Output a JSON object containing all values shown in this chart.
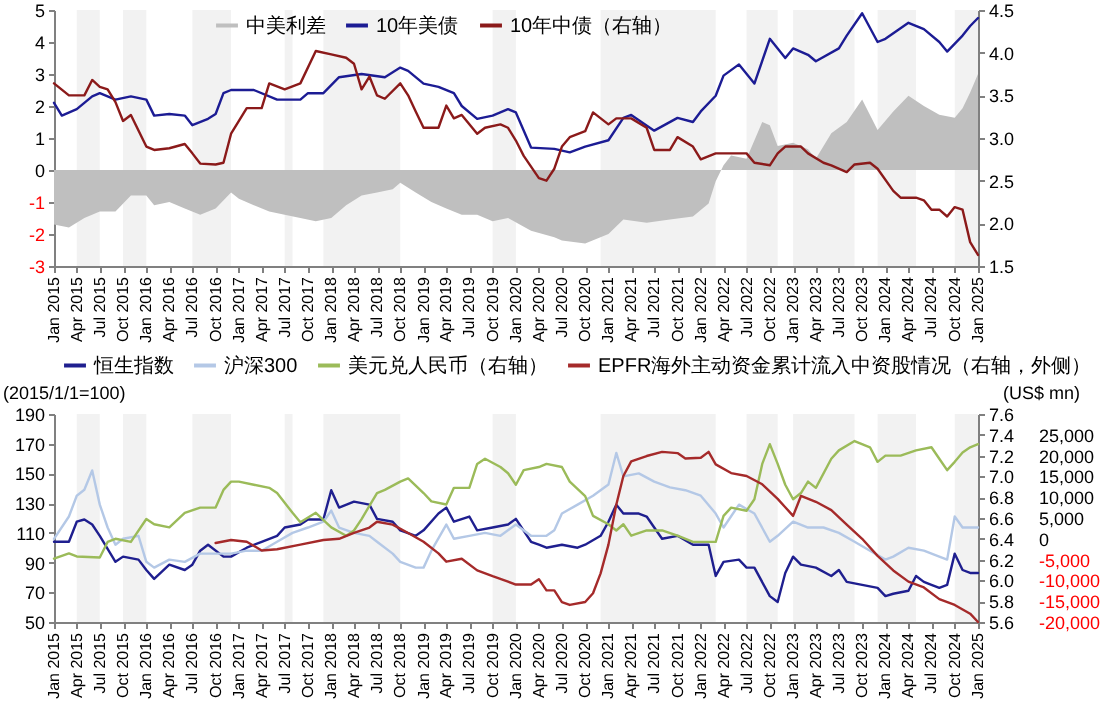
{
  "chart_data": [
    {
      "type": "line",
      "legend": "top",
      "xlim": [
        "2015-01",
        "2025-01"
      ],
      "xticks": [
        {
          "value": "2015-01",
          "label": "Jan 2015"
        },
        {
          "value": "2015-04",
          "label": "Apr 2015"
        },
        {
          "value": "2015-07",
          "label": "Jul 2015"
        },
        {
          "value": "2015-10",
          "label": "Oct 2015"
        },
        {
          "value": "2016-01",
          "label": "Jan 2016"
        },
        {
          "value": "2016-04",
          "label": "Apr 2016"
        },
        {
          "value": "2016-07",
          "label": "Jul 2016"
        },
        {
          "value": "2016-10",
          "label": "Oct 2016"
        },
        {
          "value": "2017-01",
          "label": "Jan 2017"
        },
        {
          "value": "2017-04",
          "label": "Apr 2017"
        },
        {
          "value": "2017-07",
          "label": "Jul 2017"
        },
        {
          "value": "2017-10",
          "label": "Oct 2017"
        },
        {
          "value": "2018-01",
          "label": "Jan 2018"
        },
        {
          "value": "2018-04",
          "label": "Apr 2018"
        },
        {
          "value": "2018-07",
          "label": "Jul 2018"
        },
        {
          "value": "2018-10",
          "label": "Oct 2018"
        },
        {
          "value": "2019-01",
          "label": "Jan 2019"
        },
        {
          "value": "2019-04",
          "label": "Apr 2019"
        },
        {
          "value": "2019-07",
          "label": "Jul 2019"
        },
        {
          "value": "2019-10",
          "label": "Oct 2019"
        },
        {
          "value": "2020-01",
          "label": "Jan 2020"
        },
        {
          "value": "2020-04",
          "label": "Apr 2020"
        },
        {
          "value": "2020-07",
          "label": "Jul 2020"
        },
        {
          "value": "2020-10",
          "label": "Oct 2020"
        },
        {
          "value": "2021-01",
          "label": "Jan 2021"
        },
        {
          "value": "2021-04",
          "label": "Apr 2021"
        },
        {
          "value": "2021-07",
          "label": "Jul 2021"
        },
        {
          "value": "2021-10",
          "label": "Oct 2021"
        },
        {
          "value": "2022-01",
          "label": "Jan 2022"
        },
        {
          "value": "2022-04",
          "label": "Apr 2022"
        },
        {
          "value": "2022-07",
          "label": "Jul 2022"
        },
        {
          "value": "2022-10",
          "label": "Oct 2022"
        },
        {
          "value": "2023-01",
          "label": "Jan 2023"
        },
        {
          "value": "2023-04",
          "label": "Apr 2023"
        },
        {
          "value": "2023-07",
          "label": "Jul 2023"
        },
        {
          "value": "2023-10",
          "label": "Oct 2023"
        },
        {
          "value": "2024-01",
          "label": "Jan 2024"
        },
        {
          "value": "2024-04",
          "label": "Apr 2024"
        },
        {
          "value": "2024-07",
          "label": "Jul 2024"
        },
        {
          "value": "2024-10",
          "label": "Oct 2024"
        },
        {
          "value": "2025-01",
          "label": "Jan 2025"
        }
      ],
      "ylim": [
        -3,
        5
      ],
      "yticks": [
        -3,
        -2,
        -1,
        0,
        1,
        2,
        3,
        4,
        5
      ],
      "y2lim": [
        1.5,
        4.5
      ],
      "y2ticks": [
        1.5,
        {
          "value": 2,
          "label": "2.0"
        },
        2.5,
        {
          "value": 3,
          "label": "3.0"
        },
        3.5,
        {
          "value": 4,
          "label": "4.0"
        },
        4.5
      ],
      "bands": [
        {
          "axis": "x",
          "from": "2015-04",
          "to": "2015-07",
          "color": "#f2f2f2"
        },
        {
          "axis": "x",
          "from": "2015-10",
          "to": "2016-01",
          "color": "#f2f2f2"
        },
        {
          "axis": "x",
          "from": "2016-07",
          "to": "2016-12",
          "color": "#f2f2f2"
        },
        {
          "axis": "x",
          "from": "2017-07",
          "to": "2017-08",
          "color": "#f2f2f2"
        },
        {
          "axis": "x",
          "from": "2017-12",
          "to": "2018-10",
          "color": "#f2f2f2"
        },
        {
          "axis": "x",
          "from": "2019-10",
          "to": "2020-01",
          "color": "#f2f2f2"
        },
        {
          "axis": "x",
          "from": "2020-12",
          "to": "2022-03",
          "color": "#f2f2f2"
        },
        {
          "axis": "x",
          "from": "2022-07",
          "to": "2022-11",
          "color": "#f2f2f2"
        },
        {
          "axis": "x",
          "from": "2023-01",
          "to": "2023-09",
          "color": "#f2f2f2"
        },
        {
          "axis": "x",
          "from": "2023-12",
          "to": "2024-05",
          "color": "#f2f2f2"
        },
        {
          "axis": "x",
          "from": "2024-10",
          "to": "2025-01",
          "color": "#f2f2f2"
        }
      ],
      "series": [
        {
          "name": "中美利差",
          "type": "area",
          "color": "#bfbfbf",
          "x": [
            "2015-01",
            "2015-03",
            "2015-05",
            "2015-07",
            "2015-09",
            "2015-11",
            "2016-01",
            "2016-02",
            "2016-04",
            "2016-06",
            "2016-08",
            "2016-10",
            "2016-12",
            "2017-01",
            "2017-03",
            "2017-05",
            "2017-07",
            "2017-09",
            "2017-11",
            "2018-01",
            "2018-03",
            "2018-05",
            "2018-07",
            "2018-09",
            "2018-10",
            "2018-12",
            "2019-02",
            "2019-04",
            "2019-06",
            "2019-08",
            "2019-10",
            "2019-12",
            "2020-03",
            "2020-06",
            "2020-07",
            "2020-10",
            "2021-01",
            "2021-03",
            "2021-06",
            "2021-09",
            "2021-12",
            "2022-02",
            "2022-03",
            "2022-04",
            "2022-05",
            "2022-07",
            "2022-09",
            "2022-10",
            "2022-11",
            "2023-01",
            "2023-03",
            "2023-04",
            "2023-06",
            "2023-08",
            "2023-10",
            "2023-12",
            "2024-02",
            "2024-04",
            "2024-06",
            "2024-08",
            "2024-10",
            "2024-11",
            "2024-12",
            "2025-01"
          ],
          "values": [
            -1.7,
            -1.8,
            -1.5,
            -1.3,
            -1.3,
            -0.8,
            -0.8,
            -1.1,
            -1.0,
            -1.2,
            -1.4,
            -1.2,
            -0.7,
            -0.9,
            -1.1,
            -1.3,
            -1.4,
            -1.5,
            -1.6,
            -1.5,
            -1.1,
            -0.8,
            -0.7,
            -0.6,
            -0.4,
            -0.7,
            -1.0,
            -1.2,
            -1.4,
            -1.4,
            -1.6,
            -1.5,
            -1.9,
            -2.1,
            -2.2,
            -2.3,
            -2.0,
            -1.55,
            -1.65,
            -1.55,
            -1.45,
            -1.05,
            -0.35,
            0.15,
            0.45,
            0.35,
            1.5,
            1.4,
            0.75,
            0.85,
            0.65,
            0.35,
            1.15,
            1.5,
            2.2,
            1.25,
            1.83,
            2.32,
            2.0,
            1.73,
            1.63,
            1.93,
            2.42,
            3.0
          ]
        },
        {
          "name": "10年美债",
          "color": "#1c1c94",
          "x": [
            "2015-01",
            "2015-02",
            "2015-04",
            "2015-06",
            "2015-07",
            "2015-09",
            "2015-11",
            "2016-01",
            "2016-02",
            "2016-04",
            "2016-06",
            "2016-07",
            "2016-09",
            "2016-10",
            "2016-11",
            "2016-12",
            "2017-03",
            "2017-06",
            "2017-09",
            "2017-10",
            "2017-12",
            "2018-02",
            "2018-05",
            "2018-08",
            "2018-10",
            "2018-11",
            "2019-01",
            "2019-03",
            "2019-05",
            "2019-06",
            "2019-08",
            "2019-10",
            "2019-12",
            "2020-01",
            "2020-03",
            "2020-06",
            "2020-08",
            "2020-10",
            "2021-01",
            "2021-03",
            "2021-04",
            "2021-07",
            "2021-10",
            "2021-12",
            "2022-01",
            "2022-03",
            "2022-04",
            "2022-06",
            "2022-08",
            "2022-10",
            "2022-11",
            "2022-12",
            "2023-01",
            "2023-03",
            "2023-04",
            "2023-07",
            "2023-08",
            "2023-10",
            "2023-12",
            "2024-01",
            "2024-04",
            "2024-06",
            "2024-08",
            "2024-09",
            "2024-11",
            "2024-12",
            "2025-01"
          ],
          "values": [
            2.1,
            1.7,
            1.9,
            2.3,
            2.4,
            2.2,
            2.3,
            2.2,
            1.7,
            1.75,
            1.7,
            1.4,
            1.6,
            1.75,
            2.4,
            2.5,
            2.5,
            2.2,
            2.2,
            2.4,
            2.4,
            2.9,
            3.0,
            2.9,
            3.2,
            3.1,
            2.7,
            2.6,
            2.4,
            2.0,
            1.6,
            1.7,
            1.9,
            1.8,
            0.7,
            0.66,
            0.55,
            0.73,
            0.93,
            1.63,
            1.72,
            1.23,
            1.63,
            1.5,
            1.83,
            2.32,
            2.95,
            3.3,
            2.7,
            4.1,
            3.8,
            3.5,
            3.8,
            3.6,
            3.4,
            3.8,
            4.2,
            4.9,
            4.0,
            4.1,
            4.6,
            4.4,
            4.0,
            3.7,
            4.2,
            4.5,
            4.75
          ]
        },
        {
          "name": "10年中债（右轴）",
          "color": "#8b1a1a",
          "axis": "y2",
          "x": [
            "2015-01",
            "2015-03",
            "2015-05",
            "2015-06",
            "2015-07",
            "2015-08",
            "2015-09",
            "2015-10",
            "2015-11",
            "2016-01",
            "2016-02",
            "2016-04",
            "2016-06",
            "2016-07",
            "2016-08",
            "2016-10",
            "2016-11",
            "2016-12",
            "2017-01",
            "2017-02",
            "2017-04",
            "2017-05",
            "2017-07",
            "2017-09",
            "2017-11",
            "2018-01",
            "2018-03",
            "2018-04",
            "2018-05",
            "2018-06",
            "2018-07",
            "2018-08",
            "2018-10",
            "2018-11",
            "2018-12",
            "2019-01",
            "2019-03",
            "2019-04",
            "2019-05",
            "2019-06",
            "2019-08",
            "2019-09",
            "2019-11",
            "2019-12",
            "2020-01",
            "2020-02",
            "2020-04",
            "2020-05",
            "2020-06",
            "2020-07",
            "2020-08",
            "2020-10",
            "2020-11",
            "2021-01",
            "2021-02",
            "2021-04",
            "2021-06",
            "2021-07",
            "2021-09",
            "2021-10",
            "2021-12",
            "2022-01",
            "2022-03",
            "2022-05",
            "2022-07",
            "2022-08",
            "2022-10",
            "2022-11",
            "2022-12",
            "2023-02",
            "2023-03",
            "2023-05",
            "2023-06",
            "2023-08",
            "2023-09",
            "2023-11",
            "2023-12",
            "2024-02",
            "2024-03",
            "2024-05",
            "2024-06",
            "2024-07",
            "2024-08",
            "2024-09",
            "2024-10",
            "2024-11",
            "2024-12",
            "2025-01"
          ],
          "values": [
            3.64,
            3.5,
            3.5,
            3.68,
            3.6,
            3.57,
            3.42,
            3.2,
            3.27,
            2.9,
            2.86,
            2.88,
            2.93,
            2.82,
            2.7,
            2.69,
            2.71,
            3.05,
            3.2,
            3.35,
            3.35,
            3.64,
            3.57,
            3.64,
            4.02,
            3.98,
            3.94,
            3.87,
            3.57,
            3.72,
            3.5,
            3.46,
            3.64,
            3.5,
            3.31,
            3.12,
            3.12,
            3.38,
            3.23,
            3.27,
            3.05,
            3.12,
            3.16,
            3.12,
            2.97,
            2.79,
            2.53,
            2.5,
            2.64,
            2.9,
            3.01,
            3.08,
            3.3,
            3.16,
            3.23,
            3.23,
            3.12,
            2.86,
            2.86,
            3.01,
            2.9,
            2.75,
            2.82,
            2.82,
            2.82,
            2.71,
            2.68,
            2.82,
            2.9,
            2.9,
            2.82,
            2.71,
            2.68,
            2.6,
            2.69,
            2.71,
            2.64,
            2.38,
            2.3,
            2.3,
            2.27,
            2.16,
            2.16,
            2.08,
            2.19,
            2.16,
            1.78,
            1.63
          ]
        }
      ]
    },
    {
      "type": "line",
      "legend": "top",
      "ylabel": "(2015/1/1=100)",
      "y3label": "(US$ mn)",
      "xlim": [
        "2015-01",
        "2025-01"
      ],
      "xticks": [
        {
          "value": "2015-01",
          "label": "Jan 2015"
        },
        {
          "value": "2015-04",
          "label": "Apr 2015"
        },
        {
          "value": "2015-07",
          "label": "Jul 2015"
        },
        {
          "value": "2015-10",
          "label": "Oct 2015"
        },
        {
          "value": "2016-01",
          "label": "Jan 2016"
        },
        {
          "value": "2016-04",
          "label": "Apr 2016"
        },
        {
          "value": "2016-07",
          "label": "Jul 2016"
        },
        {
          "value": "2016-10",
          "label": "Oct 2016"
        },
        {
          "value": "2017-01",
          "label": "Jan 2017"
        },
        {
          "value": "2017-04",
          "label": "Apr 2017"
        },
        {
          "value": "2017-07",
          "label": "Jul 2017"
        },
        {
          "value": "2017-10",
          "label": "Oct 2017"
        },
        {
          "value": "2018-01",
          "label": "Jan 2018"
        },
        {
          "value": "2018-04",
          "label": "Apr 2018"
        },
        {
          "value": "2018-07",
          "label": "Jul 2018"
        },
        {
          "value": "2018-10",
          "label": "Oct 2018"
        },
        {
          "value": "2019-01",
          "label": "Jan 2019"
        },
        {
          "value": "2019-04",
          "label": "Apr 2019"
        },
        {
          "value": "2019-07",
          "label": "Jul 2019"
        },
        {
          "value": "2019-10",
          "label": "Oct 2019"
        },
        {
          "value": "2020-01",
          "label": "Jan 2020"
        },
        {
          "value": "2020-04",
          "label": "Apr 2020"
        },
        {
          "value": "2020-07",
          "label": "Jul 2020"
        },
        {
          "value": "2020-10",
          "label": "Oct 2020"
        },
        {
          "value": "2021-01",
          "label": "Jan 2021"
        },
        {
          "value": "2021-04",
          "label": "Apr 2021"
        },
        {
          "value": "2021-07",
          "label": "Jul 2021"
        },
        {
          "value": "2021-10",
          "label": "Oct 2021"
        },
        {
          "value": "2022-01",
          "label": "Jan 2022"
        },
        {
          "value": "2022-04",
          "label": "Apr 2022"
        },
        {
          "value": "2022-07",
          "label": "Jul 2022"
        },
        {
          "value": "2022-10",
          "label": "Oct 2022"
        },
        {
          "value": "2023-01",
          "label": "Jan 2023"
        },
        {
          "value": "2023-04",
          "label": "Apr 2023"
        },
        {
          "value": "2023-07",
          "label": "Jul 2023"
        },
        {
          "value": "2023-10",
          "label": "Oct 2023"
        },
        {
          "value": "2024-01",
          "label": "Jan 2024"
        },
        {
          "value": "2024-04",
          "label": "Apr 2024"
        },
        {
          "value": "2024-07",
          "label": "Jul 2024"
        },
        {
          "value": "2024-10",
          "label": "Oct 2024"
        },
        {
          "value": "2025-01",
          "label": "Jan 2025"
        }
      ],
      "ylim": [
        50,
        190
      ],
      "yticks": [
        50,
        70,
        90,
        110,
        130,
        150,
        170,
        190
      ],
      "y2lim": [
        5.6,
        7.6
      ],
      "y2ticks": [
        5.6,
        5.8,
        {
          "value": 6,
          "label": "6.0"
        },
        6.2,
        6.4,
        6.6,
        6.8,
        {
          "value": 7,
          "label": "7.0"
        },
        7.2,
        7.4,
        7.6
      ],
      "y3lim": [
        -20000,
        30000
      ],
      "y3ticks": [
        {
          "value": -20000,
          "label": "-20,000"
        },
        {
          "value": -15000,
          "label": "-15,000"
        },
        {
          "value": -10000,
          "label": "-10,000"
        },
        {
          "value": -5000,
          "label": "-5,000"
        },
        0,
        {
          "value": 5000,
          "label": "5,000"
        },
        {
          "value": 10000,
          "label": "10,000"
        },
        {
          "value": 15000,
          "label": "15,000"
        },
        {
          "value": 20000,
          "label": "20,000"
        },
        {
          "value": 25000,
          "label": "25,000"
        }
      ],
      "bands": [
        {
          "axis": "x",
          "from": "2015-04",
          "to": "2015-07",
          "color": "#f2f2f2"
        },
        {
          "axis": "x",
          "from": "2015-10",
          "to": "2016-01",
          "color": "#f2f2f2"
        },
        {
          "axis": "x",
          "from": "2016-07",
          "to": "2016-12",
          "color": "#f2f2f2"
        },
        {
          "axis": "x",
          "from": "2017-07",
          "to": "2017-08",
          "color": "#f2f2f2"
        },
        {
          "axis": "x",
          "from": "2017-12",
          "to": "2018-10",
          "color": "#f2f2f2"
        },
        {
          "axis": "x",
          "from": "2019-10",
          "to": "2020-01",
          "color": "#f2f2f2"
        },
        {
          "axis": "x",
          "from": "2020-12",
          "to": "2022-03",
          "color": "#f2f2f2"
        },
        {
          "axis": "x",
          "from": "2022-07",
          "to": "2022-11",
          "color": "#f2f2f2"
        },
        {
          "axis": "x",
          "from": "2023-01",
          "to": "2023-09",
          "color": "#f2f2f2"
        },
        {
          "axis": "x",
          "from": "2023-12",
          "to": "2024-05",
          "color": "#f2f2f2"
        },
        {
          "axis": "x",
          "from": "2024-10",
          "to": "2025-01",
          "color": "#f2f2f2"
        }
      ],
      "series": [
        {
          "name": "恒生指数",
          "color": "#1f1f8f",
          "x": [
            "2015-01",
            "2015-03",
            "2015-04",
            "2015-05",
            "2015-06",
            "2015-07",
            "2015-09",
            "2015-10",
            "2015-12",
            "2016-01",
            "2016-02",
            "2016-04",
            "2016-06",
            "2016-07",
            "2016-08",
            "2016-09",
            "2016-11",
            "2016-12",
            "2017-02",
            "2017-04",
            "2017-06",
            "2017-07",
            "2017-09",
            "2017-10",
            "2017-12",
            "2018-01",
            "2018-02",
            "2018-04",
            "2018-06",
            "2018-07",
            "2018-09",
            "2018-10",
            "2018-12",
            "2019-01",
            "2019-03",
            "2019-04",
            "2019-05",
            "2019-07",
            "2019-08",
            "2019-10",
            "2019-12",
            "2020-01",
            "2020-03",
            "2020-04",
            "2020-05",
            "2020-07",
            "2020-09",
            "2020-10",
            "2020-12",
            "2021-01",
            "2021-02",
            "2021-03",
            "2021-05",
            "2021-06",
            "2021-07",
            "2021-08",
            "2021-10",
            "2021-12",
            "2022-02",
            "2022-03",
            "2022-04",
            "2022-06",
            "2022-07",
            "2022-08",
            "2022-10",
            "2022-11",
            "2022-12",
            "2023-01",
            "2023-02",
            "2023-04",
            "2023-06",
            "2023-07",
            "2023-08",
            "2023-10",
            "2023-12",
            "2024-01",
            "2024-02",
            "2024-04",
            "2024-05",
            "2024-06",
            "2024-07",
            "2024-08",
            "2024-09",
            "2024-10",
            "2024-11",
            "2024-12",
            "2025-01"
          ],
          "values": [
            104,
            104,
            117.5,
            119,
            115.6,
            108,
            90.5,
            94,
            92,
            85,
            79,
            88.6,
            85,
            88.6,
            98,
            102,
            94,
            94,
            100,
            104,
            108,
            113.6,
            115.6,
            119,
            119,
            138.7,
            127,
            131,
            129,
            119.4,
            117.5,
            111.7,
            108,
            111.7,
            123,
            127,
            117.5,
            121,
            111.7,
            113.6,
            115.6,
            119.4,
            104,
            102,
            100,
            102,
            100,
            102,
            108,
            117.5,
            129,
            123,
            123,
            121,
            113.6,
            106,
            108,
            102,
            102,
            81,
            90.5,
            92,
            86.6,
            86.6,
            67.4,
            63.5,
            83,
            94,
            88.6,
            86.6,
            81,
            85,
            77,
            75,
            73,
            67.4,
            69,
            71,
            81,
            77,
            75,
            73,
            75,
            96,
            85,
            83,
            83
          ]
        },
        {
          "name": "沪深300",
          "color": "#b4c8e6",
          "x": [
            "2015-01",
            "2015-03",
            "2015-04",
            "2015-05",
            "2015-06",
            "2015-07",
            "2015-08",
            "2015-09",
            "2015-10",
            "2015-12",
            "2016-01",
            "2016-02",
            "2016-04",
            "2016-06",
            "2016-08",
            "2016-10",
            "2016-12",
            "2017-02",
            "2017-04",
            "2017-06",
            "2017-08",
            "2017-10",
            "2017-12",
            "2018-01",
            "2018-02",
            "2018-04",
            "2018-06",
            "2018-07",
            "2018-09",
            "2018-10",
            "2018-12",
            "2019-01",
            "2019-02",
            "2019-04",
            "2019-05",
            "2019-07",
            "2019-09",
            "2019-11",
            "2020-01",
            "2020-03",
            "2020-05",
            "2020-06",
            "2020-07",
            "2020-09",
            "2020-11",
            "2021-01",
            "2021-02",
            "2021-03",
            "2021-05",
            "2021-07",
            "2021-09",
            "2021-11",
            "2022-01",
            "2022-03",
            "2022-04",
            "2022-06",
            "2022-08",
            "2022-10",
            "2022-11",
            "2023-01",
            "2023-03",
            "2023-05",
            "2023-07",
            "2023-09",
            "2023-11",
            "2024-01",
            "2024-02",
            "2024-04",
            "2024-06",
            "2024-08",
            "2024-09",
            "2024-10",
            "2024-11",
            "2025-01"
          ],
          "values": [
            106,
            121,
            135,
            139,
            152,
            129,
            113.6,
            102,
            106,
            108,
            90.5,
            86.6,
            92,
            90.5,
            96,
            96,
            96,
            98,
            98,
            104,
            110,
            113.6,
            117.5,
            125,
            113.6,
            110,
            108,
            104,
            96,
            90.5,
            86.6,
            86.6,
            98,
            115.6,
            106,
            108,
            110,
            108,
            115.6,
            108,
            108,
            111.7,
            123,
            129,
            135,
            142.6,
            163.8,
            148,
            150,
            144.5,
            140.6,
            138.7,
            135,
            123,
            113.6,
            129,
            123,
            104,
            108,
            117.5,
            113.6,
            113.6,
            110,
            104,
            98,
            92,
            94,
            100,
            98,
            94,
            92,
            121,
            113.6,
            113.6
          ]
        },
        {
          "name": "美元兑人民币（右轴）",
          "color": "#9bbb59",
          "axis": "y2",
          "x": [
            "2015-01",
            "2015-03",
            "2015-04",
            "2015-07",
            "2015-08",
            "2015-09",
            "2015-11",
            "2016-01",
            "2016-02",
            "2016-04",
            "2016-06",
            "2016-08",
            "2016-10",
            "2016-11",
            "2016-12",
            "2017-01",
            "2017-03",
            "2017-05",
            "2017-06",
            "2017-08",
            "2017-09",
            "2017-11",
            "2018-01",
            "2018-03",
            "2018-04",
            "2018-05",
            "2018-07",
            "2018-08",
            "2018-10",
            "2018-11",
            "2019-01",
            "2019-02",
            "2019-04",
            "2019-05",
            "2019-07",
            "2019-08",
            "2019-09",
            "2019-11",
            "2019-12",
            "2020-01",
            "2020-02",
            "2020-04",
            "2020-05",
            "2020-07",
            "2020-08",
            "2020-10",
            "2020-11",
            "2021-01",
            "2021-02",
            "2021-03",
            "2021-04",
            "2021-06",
            "2021-08",
            "2021-10",
            "2021-12",
            "2022-02",
            "2022-03",
            "2022-04",
            "2022-05",
            "2022-07",
            "2022-08",
            "2022-09",
            "2022-10",
            "2022-11",
            "2022-12",
            "2023-01",
            "2023-02",
            "2023-03",
            "2023-04",
            "2023-06",
            "2023-07",
            "2023-09",
            "2023-11",
            "2023-12",
            "2024-01",
            "2024-03",
            "2024-05",
            "2024-07",
            "2024-08",
            "2024-09",
            "2024-10",
            "2024-11",
            "2024-12",
            "2025-01"
          ],
          "values": [
            6.21,
            6.26,
            6.23,
            6.22,
            6.37,
            6.4,
            6.37,
            6.59,
            6.54,
            6.51,
            6.65,
            6.7,
            6.7,
            6.87,
            6.95,
            6.95,
            6.92,
            6.89,
            6.84,
            6.65,
            6.56,
            6.65,
            6.51,
            6.43,
            6.48,
            6.59,
            6.84,
            6.87,
            6.95,
            6.98,
            6.84,
            6.76,
            6.73,
            6.89,
            6.89,
            7.12,
            7.17,
            7.09,
            7.03,
            6.92,
            7.06,
            7.09,
            7.12,
            7.09,
            6.95,
            6.81,
            6.62,
            6.54,
            6.48,
            6.54,
            6.43,
            6.48,
            6.48,
            6.43,
            6.37,
            6.37,
            6.37,
            6.62,
            6.7,
            6.67,
            6.78,
            7.12,
            7.31,
            7.12,
            6.92,
            6.78,
            6.84,
            6.95,
            6.89,
            7.17,
            7.25,
            7.34,
            7.28,
            7.14,
            7.2,
            7.2,
            7.25,
            7.28,
            7.17,
            7.06,
            7.14,
            7.23,
            7.28,
            7.31
          ]
        },
        {
          "name": "EPFR海外主动资金累计流入中资股情况（右轴，外侧）",
          "color": "#a52a2a",
          "axis": "y3",
          "x": [
            "2016-10",
            "2016-12",
            "2017-02",
            "2017-04",
            "2017-06",
            "2017-09",
            "2017-12",
            "2018-02",
            "2018-04",
            "2018-06",
            "2018-07",
            "2018-09",
            "2018-11",
            "2019-01",
            "2019-03",
            "2019-04",
            "2019-06",
            "2019-08",
            "2019-10",
            "2019-12",
            "2020-01",
            "2020-03",
            "2020-04",
            "2020-05",
            "2020-06",
            "2020-07",
            "2020-08",
            "2020-10",
            "2020-11",
            "2020-12",
            "2021-01",
            "2021-02",
            "2021-03",
            "2021-04",
            "2021-06",
            "2021-08",
            "2021-10",
            "2021-11",
            "2022-01",
            "2022-02",
            "2022-03",
            "2022-05",
            "2022-07",
            "2022-09",
            "2022-11",
            "2022-12",
            "2023-01",
            "2023-02",
            "2023-04",
            "2023-06",
            "2023-08",
            "2023-10",
            "2023-12",
            "2024-02",
            "2024-04",
            "2024-06",
            "2024-08",
            "2024-10",
            "2024-12",
            "2025-01"
          ],
          "values": [
            -1000,
            -300,
            -700,
            -2800,
            -2500,
            -1400,
            -300,
            0,
            1400,
            2700,
            4100,
            3400,
            1400,
            -700,
            -3500,
            -5500,
            -4800,
            -7600,
            -9000,
            -10300,
            -11000,
            -11000,
            -9700,
            -12400,
            -12400,
            -15200,
            -15900,
            -15200,
            -13100,
            -8300,
            -1400,
            8200,
            15100,
            18600,
            19900,
            20900,
            20600,
            19300,
            19500,
            20900,
            17900,
            15800,
            15100,
            13100,
            9600,
            7600,
            5500,
            10300,
            8900,
            6900,
            3400,
            0,
            -4100,
            -7600,
            -10300,
            -11700,
            -14500,
            -15900,
            -18000,
            -20000
          ]
        }
      ]
    }
  ]
}
